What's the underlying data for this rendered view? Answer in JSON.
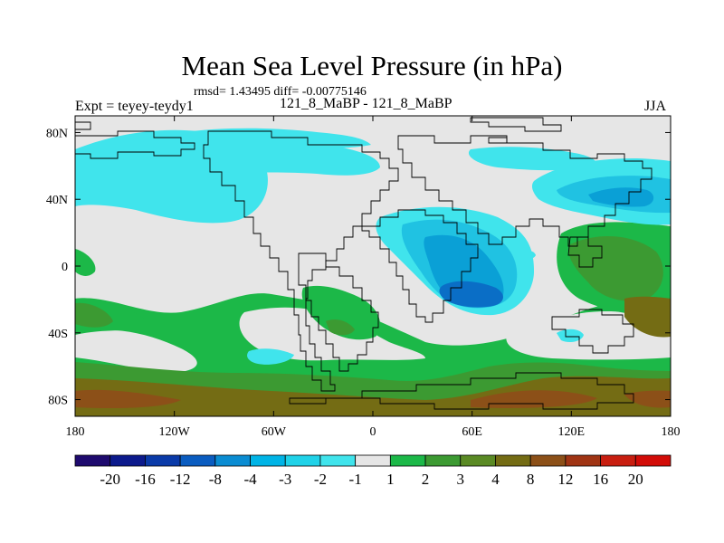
{
  "header": {
    "title": "Mean Sea Level Pressure (in hPa)",
    "stats": "rmsd= 1.43495 diff= -0.00775146",
    "experiment": "Expt = teyey-teydy1",
    "cases": "121_8_MaBP - 121_8_MaBP",
    "season": "JJA"
  },
  "axes": {
    "lon_labels": [
      "180",
      "120W",
      "60W",
      "0",
      "60E",
      "120E",
      "180"
    ],
    "lat_labels": [
      "80N",
      "40N",
      "0",
      "40S",
      "80S"
    ],
    "lon_values": [
      -180,
      -120,
      -60,
      0,
      60,
      120,
      180
    ],
    "lat_values": [
      80,
      40,
      0,
      -40,
      -80
    ]
  },
  "colorbar": {
    "labels": [
      "-20",
      "-16",
      "-12",
      "-8",
      "-4",
      "-3",
      "-2",
      "-1",
      "1",
      "2",
      "3",
      "4",
      "8",
      "12",
      "16",
      "20"
    ],
    "colors": [
      "#1e0a6e",
      "#0c1a8c",
      "#0a3aa8",
      "#0a5cc0",
      "#0a8cd2",
      "#00b4e6",
      "#20d2e8",
      "#40e4ec",
      "#e6e6e6",
      "#1cb848",
      "#3c9a32",
      "#5a8a24",
      "#746c14",
      "#8c5018",
      "#a03414",
      "#c81e10",
      "#d20c08"
    ]
  },
  "map_colors": {
    "neutral": "#e6e6e6",
    "neg_light": "#40e4ec",
    "neg_mid": "#20c2e2",
    "neg_deep": "#0aa0d6",
    "neg_core": "#0a6ec6",
    "pos_light": "#1cb848",
    "pos_mid": "#3c9a32",
    "pos_deep": "#5a8a24",
    "pos_brown": "#746c14",
    "pos_darkbrown": "#8c5018"
  }
}
